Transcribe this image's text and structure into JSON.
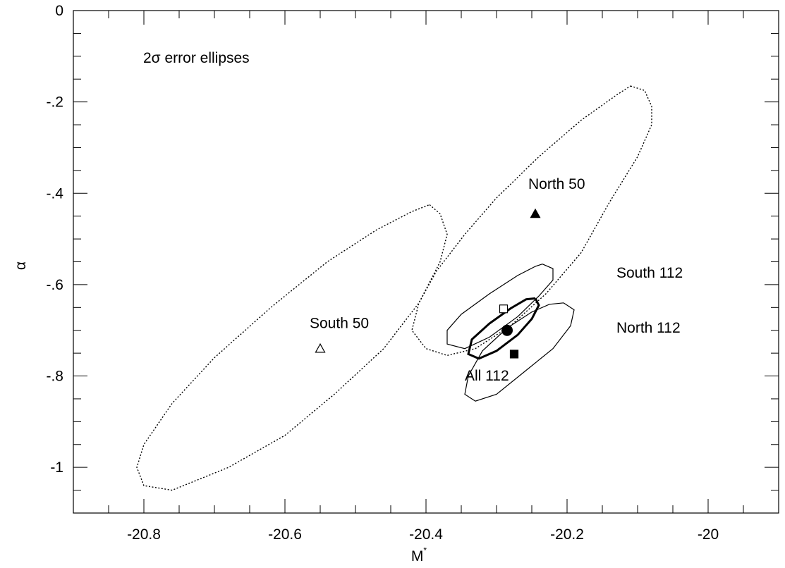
{
  "chart_data": {
    "type": "scatter",
    "title": "",
    "xlabel": "M",
    "xlabel_superscript": "*",
    "ylabel": "α",
    "xlim": [
      -20.9,
      -19.9
    ],
    "ylim": [
      -1.1,
      0
    ],
    "x_ticks": [
      {
        "value": -20.8,
        "label": "-20.8"
      },
      {
        "value": -20.6,
        "label": "-20.6"
      },
      {
        "value": -20.4,
        "label": "-20.4"
      },
      {
        "value": -20.2,
        "label": "-20.2"
      },
      {
        "value": -20.0,
        "label": "-20"
      }
    ],
    "y_ticks": [
      {
        "value": 0,
        "label": "0"
      },
      {
        "value": -0.2,
        "label": "-.2"
      },
      {
        "value": -0.4,
        "label": "-.4"
      },
      {
        "value": -0.6,
        "label": "-.6"
      },
      {
        "value": -0.8,
        "label": "-.8"
      },
      {
        "value": -1.0,
        "label": "-1"
      }
    ],
    "grid": false,
    "note": "2σ error ellipses",
    "points": [
      {
        "name": "North 50",
        "x": -20.245,
        "y": -0.445,
        "marker": "filled-triangle"
      },
      {
        "name": "South 50",
        "x": -20.55,
        "y": -0.74,
        "marker": "open-triangle"
      },
      {
        "name": "South 112",
        "x": -20.29,
        "y": -0.653,
        "marker": "open-square"
      },
      {
        "name": "North 112",
        "x": -20.275,
        "y": -0.752,
        "marker": "filled-square"
      },
      {
        "name": "All 112",
        "x": -20.285,
        "y": -0.7,
        "marker": "filled-circle"
      }
    ],
    "ellipses": [
      {
        "name": "North 50",
        "style": "dotted",
        "points": [
          [
            -20.11,
            -0.165
          ],
          [
            -20.09,
            -0.175
          ],
          [
            -20.08,
            -0.21
          ],
          [
            -20.08,
            -0.25
          ],
          [
            -20.1,
            -0.32
          ],
          [
            -20.14,
            -0.42
          ],
          [
            -20.18,
            -0.53
          ],
          [
            -20.23,
            -0.62
          ],
          [
            -20.28,
            -0.69
          ],
          [
            -20.33,
            -0.74
          ],
          [
            -20.37,
            -0.755
          ],
          [
            -20.4,
            -0.74
          ],
          [
            -20.42,
            -0.7
          ],
          [
            -20.41,
            -0.64
          ],
          [
            -20.385,
            -0.57
          ],
          [
            -20.345,
            -0.49
          ],
          [
            -20.3,
            -0.41
          ],
          [
            -20.24,
            -0.32
          ],
          [
            -20.18,
            -0.24
          ],
          [
            -20.13,
            -0.185
          ],
          [
            -20.11,
            -0.165
          ]
        ]
      },
      {
        "name": "South 50",
        "style": "dotted",
        "points": [
          [
            -20.395,
            -0.425
          ],
          [
            -20.38,
            -0.445
          ],
          [
            -20.37,
            -0.49
          ],
          [
            -20.38,
            -0.55
          ],
          [
            -20.41,
            -0.64
          ],
          [
            -20.46,
            -0.74
          ],
          [
            -20.53,
            -0.84
          ],
          [
            -20.6,
            -0.93
          ],
          [
            -20.68,
            -1.0
          ],
          [
            -20.76,
            -1.05
          ],
          [
            -20.8,
            -1.04
          ],
          [
            -20.81,
            -1.0
          ],
          [
            -20.8,
            -0.95
          ],
          [
            -20.76,
            -0.86
          ],
          [
            -20.7,
            -0.76
          ],
          [
            -20.62,
            -0.65
          ],
          [
            -20.54,
            -0.55
          ],
          [
            -20.47,
            -0.48
          ],
          [
            -20.42,
            -0.44
          ],
          [
            -20.395,
            -0.425
          ]
        ]
      },
      {
        "name": "South 112",
        "style": "solid",
        "points": [
          [
            -20.235,
            -0.555
          ],
          [
            -20.22,
            -0.565
          ],
          [
            -20.22,
            -0.59
          ],
          [
            -20.24,
            -0.625
          ],
          [
            -20.27,
            -0.67
          ],
          [
            -20.31,
            -0.715
          ],
          [
            -20.345,
            -0.74
          ],
          [
            -20.37,
            -0.73
          ],
          [
            -20.37,
            -0.7
          ],
          [
            -20.35,
            -0.665
          ],
          [
            -20.31,
            -0.62
          ],
          [
            -20.27,
            -0.58
          ],
          [
            -20.245,
            -0.56
          ],
          [
            -20.235,
            -0.555
          ]
        ]
      },
      {
        "name": "North 112",
        "style": "solid",
        "points": [
          [
            -20.205,
            -0.64
          ],
          [
            -20.19,
            -0.655
          ],
          [
            -20.195,
            -0.69
          ],
          [
            -20.22,
            -0.74
          ],
          [
            -20.26,
            -0.79
          ],
          [
            -20.3,
            -0.84
          ],
          [
            -20.33,
            -0.855
          ],
          [
            -20.345,
            -0.84
          ],
          [
            -20.34,
            -0.8
          ],
          [
            -20.32,
            -0.745
          ],
          [
            -20.285,
            -0.695
          ],
          [
            -20.25,
            -0.66
          ],
          [
            -20.225,
            -0.643
          ],
          [
            -20.205,
            -0.64
          ]
        ]
      },
      {
        "name": "All 112",
        "style": "bold",
        "points": [
          [
            -20.245,
            -0.63
          ],
          [
            -20.24,
            -0.645
          ],
          [
            -20.25,
            -0.675
          ],
          [
            -20.27,
            -0.71
          ],
          [
            -20.3,
            -0.745
          ],
          [
            -20.325,
            -0.762
          ],
          [
            -20.34,
            -0.752
          ],
          [
            -20.335,
            -0.72
          ],
          [
            -20.31,
            -0.685
          ],
          [
            -20.28,
            -0.652
          ],
          [
            -20.258,
            -0.632
          ],
          [
            -20.245,
            -0.63
          ]
        ]
      }
    ],
    "labels": [
      {
        "text": "North 50",
        "x": -20.255,
        "y": -0.39
      },
      {
        "text": "South 50",
        "x": -20.565,
        "y": -0.695
      },
      {
        "text": "South 112",
        "x": -20.13,
        "y": -0.585
      },
      {
        "text": "North 112",
        "x": -20.13,
        "y": -0.705
      },
      {
        "text": "All 112",
        "x": -20.345,
        "y": -0.81
      }
    ]
  }
}
